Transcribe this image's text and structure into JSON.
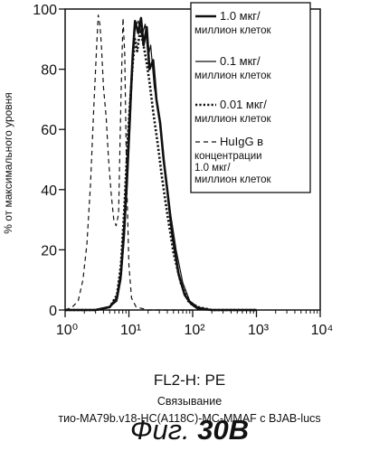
{
  "chart_data": {
    "type": "line",
    "xscale": "log",
    "xlim": [
      1,
      10000
    ],
    "ylim": [
      0,
      100
    ],
    "xtick_labels": [
      "10⁰",
      "10¹",
      "10²",
      "10³",
      "10⁴"
    ],
    "ytick_labels": [
      "0",
      "20",
      "40",
      "60",
      "80",
      "100"
    ],
    "xlabel": "FL2-H: PE",
    "ylabel": "% от максимального уровня",
    "legend": [
      {
        "line1": "1.0 мкг/",
        "line2": "миллион клеток",
        "style": "thick-solid"
      },
      {
        "line1": "0.1 мкг/",
        "line2": "миллион клеток",
        "style": "thin-solid"
      },
      {
        "line1": "0.01 мкг/",
        "line2": "миллион клеток",
        "style": "dotted"
      },
      {
        "line1": "HuIgG в",
        "line2": "концентрации",
        "line3": "1.0 мкг/",
        "line4": "миллион клеток",
        "style": "dashed"
      }
    ],
    "series": [
      {
        "style": "thick-solid",
        "x": [
          1,
          3,
          5,
          6.5,
          7.5,
          8.5,
          9.5,
          10.5,
          11.5,
          12.5,
          14,
          15.5,
          17,
          19,
          21,
          24,
          27,
          31,
          35,
          40,
          48,
          60,
          75,
          95,
          120,
          200,
          1000
        ],
        "y": [
          0,
          0,
          1,
          4,
          12,
          28,
          48,
          68,
          85,
          96,
          92,
          97,
          88,
          94,
          80,
          83,
          70,
          62,
          50,
          40,
          25,
          12,
          5,
          2,
          0.5,
          0,
          0
        ]
      },
      {
        "style": "thin-solid",
        "x": [
          1,
          3,
          5,
          6.5,
          7.5,
          8.5,
          9.5,
          10.5,
          11.5,
          12.5,
          14,
          16,
          18,
          20,
          22,
          25,
          29,
          33,
          38,
          45,
          55,
          70,
          90,
          120,
          200,
          1000
        ],
        "y": [
          0,
          0,
          1,
          3,
          10,
          24,
          42,
          62,
          82,
          94,
          96,
          91,
          95,
          84,
          88,
          74,
          66,
          55,
          44,
          32,
          20,
          9,
          3,
          1,
          0,
          0
        ]
      },
      {
        "style": "dotted",
        "x": [
          1,
          3,
          5,
          6.5,
          7.5,
          8.5,
          9.5,
          10.5,
          11.5,
          12.5,
          13.5,
          15,
          17,
          19,
          21,
          24,
          28,
          33,
          40,
          50,
          65,
          85,
          120,
          200,
          1000
        ],
        "y": [
          0,
          0,
          1,
          5,
          15,
          34,
          55,
          70,
          82,
          90,
          86,
          93,
          88,
          82,
          76,
          66,
          56,
          44,
          32,
          19,
          9,
          3,
          1,
          0,
          0
        ]
      },
      {
        "style": "dashed",
        "x": [
          1,
          1.3,
          1.6,
          1.9,
          2.2,
          2.5,
          2.8,
          3.1,
          3.3,
          3.5,
          3.7,
          4.0,
          4.4,
          4.8,
          5.3,
          5.8,
          6.3,
          6.9,
          7.5,
          8.1,
          8.6,
          9.2,
          10,
          11,
          13,
          20,
          100
        ],
        "y": [
          0,
          1,
          3,
          10,
          22,
          42,
          66,
          86,
          98,
          95,
          88,
          74,
          64,
          50,
          38,
          30,
          28,
          32,
          70,
          97,
          85,
          45,
          15,
          4,
          1,
          0,
          0
        ]
      }
    ]
  },
  "caption": {
    "line1": "Связывание",
    "line2": "тио-MA79b.v18-HC(A118C)-MC-MMAF с BJAB-lucs",
    "figure_prefix": "Фиг.",
    "figure_number": "30B"
  }
}
